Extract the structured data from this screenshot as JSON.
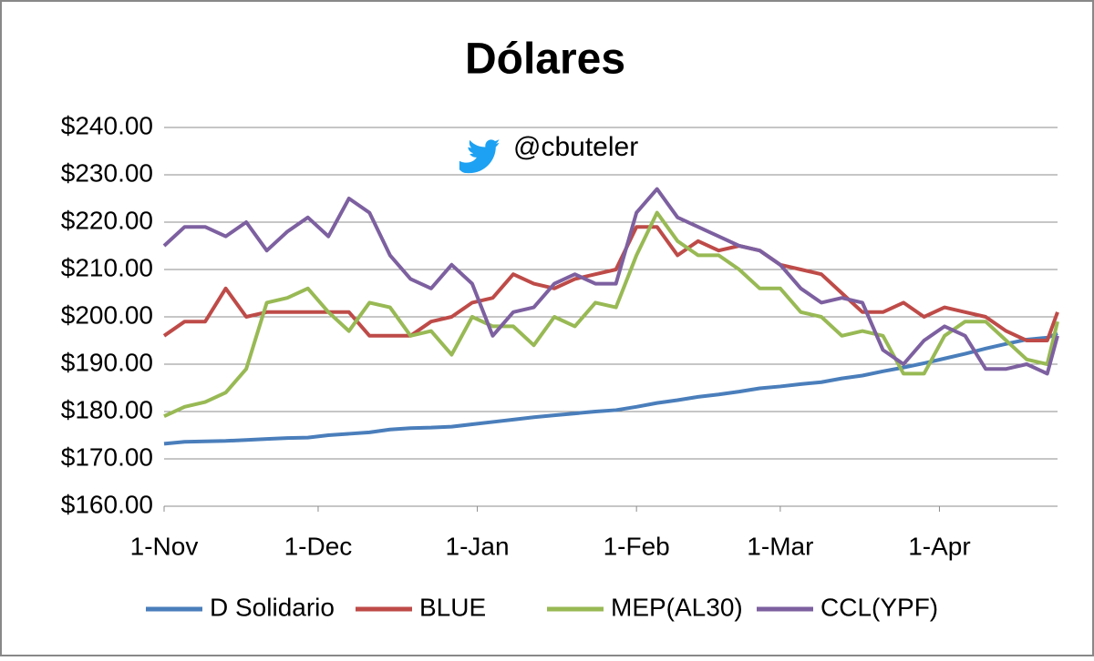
{
  "chart_data": {
    "type": "line",
    "title": "Dólares",
    "annotation": "@cbuteler",
    "x": [
      0,
      4,
      8,
      12,
      16,
      20,
      24,
      28,
      32,
      36,
      40,
      44,
      48,
      52,
      56,
      60,
      64,
      68,
      72,
      76,
      80,
      84,
      88,
      92,
      96,
      100,
      104,
      108,
      112,
      116,
      120,
      124,
      128,
      132,
      136,
      140,
      144,
      148,
      152,
      156,
      160,
      164,
      168,
      172,
      174
    ],
    "series": [
      {
        "name": "D Solidario",
        "color": "#4a7ebb",
        "values": [
          173.2,
          173.6,
          173.7,
          173.8,
          174,
          174.2,
          174.4,
          174.5,
          175,
          175.3,
          175.6,
          176.2,
          176.5,
          176.6,
          176.8,
          177.3,
          177.8,
          178.3,
          178.8,
          179.2,
          179.6,
          180,
          180.3,
          181,
          181.8,
          182.4,
          183.1,
          183.6,
          184.2,
          184.9,
          185.3,
          185.8,
          186.2,
          187,
          187.6,
          188.5,
          189.3,
          190.2,
          191.2,
          192.2,
          193.3,
          194.3,
          195.2,
          195.6,
          196.5
        ]
      },
      {
        "name": "BLUE",
        "color": "#be4b48",
        "values": [
          196,
          199,
          199,
          206,
          200,
          201,
          201,
          201,
          201,
          201,
          196,
          196,
          196,
          199,
          200,
          203,
          204,
          209,
          207,
          206,
          208,
          209,
          210,
          219,
          219,
          213,
          216,
          214,
          215,
          214,
          211,
          210,
          209,
          205,
          201,
          201,
          203,
          200,
          202,
          201,
          200,
          197,
          195,
          195,
          201
        ]
      },
      {
        "name": "MEP(AL30)",
        "color": "#98b954",
        "values": [
          179,
          181,
          182,
          184,
          189,
          203,
          204,
          206,
          201,
          197,
          203,
          202,
          196,
          197,
          192,
          200,
          198,
          198,
          194,
          200,
          198,
          203,
          202,
          213,
          222,
          216,
          213,
          213,
          210,
          206,
          206,
          201,
          200,
          196,
          197,
          196,
          188,
          188,
          196,
          199,
          199,
          195,
          191,
          190,
          199
        ]
      },
      {
        "name": "CCL(YPF)",
        "color": "#7d60a0",
        "values": [
          215,
          219,
          219,
          217,
          220,
          214,
          218,
          221,
          217,
          225,
          222,
          213,
          208,
          206,
          211,
          207,
          196,
          201,
          202,
          207,
          209,
          207,
          207,
          222,
          227,
          221,
          219,
          217,
          215,
          214,
          211,
          206,
          203,
          204,
          203,
          193,
          190,
          195,
          198,
          196,
          189,
          189,
          190,
          188,
          196
        ]
      }
    ],
    "xlim": [
      0,
      174
    ],
    "xticks": [
      {
        "value": 0,
        "label": "1-Nov"
      },
      {
        "value": 30,
        "label": "1-Dec"
      },
      {
        "value": 61,
        "label": "1-Jan"
      },
      {
        "value": 92,
        "label": "1-Feb"
      },
      {
        "value": 120,
        "label": "1-Mar"
      },
      {
        "value": 151,
        "label": "1-Apr"
      }
    ],
    "ylim": [
      160,
      240
    ],
    "yticks": [
      {
        "value": 160,
        "label": "$160.00"
      },
      {
        "value": 170,
        "label": "$170.00"
      },
      {
        "value": 180,
        "label": "$180.00"
      },
      {
        "value": 190,
        "label": "$190.00"
      },
      {
        "value": 200,
        "label": "$200.00"
      },
      {
        "value": 210,
        "label": "$210.00"
      },
      {
        "value": 220,
        "label": "$220.00"
      },
      {
        "value": 230,
        "label": "$230.00"
      },
      {
        "value": 240,
        "label": "$240.00"
      }
    ],
    "grid": true,
    "legend": "bottom"
  }
}
